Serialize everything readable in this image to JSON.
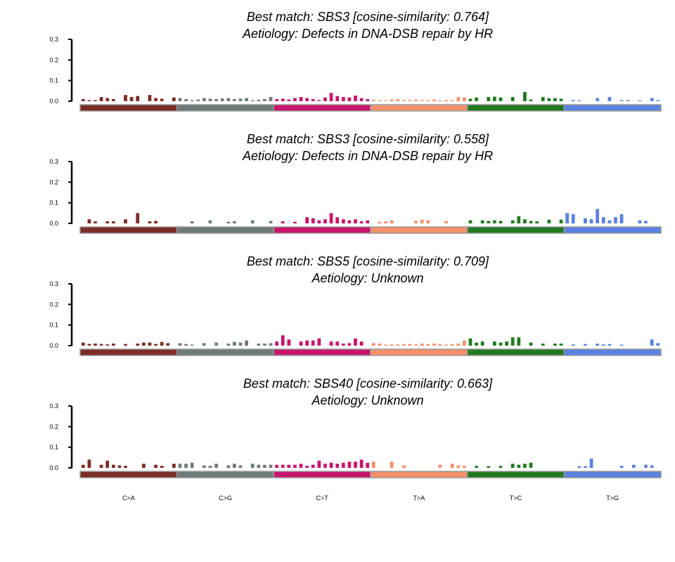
{
  "chart_data": [
    {
      "type": "bar",
      "title": "Best match: SBS3 [cosine-similarity: 0.764]",
      "subtitle": "Aetiology: Defects in DNA-DSB repair by HR",
      "ylim": [
        0,
        0.3
      ],
      "yticks": [
        "0.0",
        "0.1",
        "0.2",
        "0.3"
      ],
      "values": [
        0.01,
        0.005,
        0.005,
        0.02,
        0.015,
        0.01,
        0,
        0.03,
        0.02,
        0.025,
        0,
        0.03,
        0.015,
        0.012,
        0,
        0.018,
        0.015,
        0.01,
        0.005,
        0.008,
        0.015,
        0.012,
        0.01,
        0.013,
        0.015,
        0.01,
        0.013,
        0.015,
        0.005,
        0.007,
        0.01,
        0.02,
        0.01,
        0.012,
        0.008,
        0.015,
        0.02,
        0.015,
        0.01,
        0.005,
        0.018,
        0.04,
        0.025,
        0.02,
        0.018,
        0.027,
        0.015,
        0.01,
        0.006,
        0.005,
        0.004,
        0.008,
        0.01,
        0.006,
        0.005,
        0.008,
        0.005,
        0.005,
        0.008,
        0.004,
        0.006,
        0.005,
        0.02,
        0.018,
        0.012,
        0.018,
        0,
        0.02,
        0.022,
        0.018,
        0,
        0.02,
        0,
        0.045,
        0.008,
        0,
        0.02,
        0.015,
        0.015,
        0.012,
        0,
        0.005,
        0.004,
        0,
        0,
        0.015,
        0,
        0.02,
        0,
        0.005,
        0.005,
        0,
        0.004,
        0,
        0.015,
        0.005
      ]
    },
    {
      "type": "bar",
      "title": "Best match: SBS3 [cosine-similarity: 0.558]",
      "subtitle": "Aetiology: Defects in DNA-DSB repair by HR",
      "ylim": [
        0,
        0.3
      ],
      "yticks": [
        "0.0",
        "0.1",
        "0.2",
        "0.3"
      ],
      "values": [
        0,
        0.02,
        0.01,
        0,
        0.01,
        0.01,
        0,
        0.02,
        0,
        0.05,
        0,
        0.01,
        0.012,
        0,
        0,
        0,
        0,
        0,
        0.01,
        0,
        0,
        0.015,
        0,
        0,
        0.008,
        0.01,
        0,
        0,
        0.015,
        0,
        0,
        0.012,
        0,
        0.01,
        0,
        0.008,
        0,
        0.03,
        0.025,
        0.015,
        0.02,
        0.05,
        0.03,
        0.02,
        0.015,
        0.02,
        0.01,
        0.015,
        0,
        0.008,
        0.01,
        0.015,
        0,
        0,
        0,
        0.012,
        0.018,
        0.015,
        0,
        0,
        0.012,
        0,
        0,
        0,
        0.015,
        0,
        0.015,
        0.012,
        0.015,
        0.012,
        0,
        0.015,
        0.035,
        0.02,
        0.012,
        0.01,
        0,
        0.018,
        0,
        0.018,
        0.05,
        0.045,
        0,
        0.025,
        0.02,
        0.07,
        0.03,
        0.015,
        0.03,
        0.045,
        0,
        0,
        0.015,
        0.012,
        0,
        0
      ]
    },
    {
      "type": "bar",
      "title": "Best match: SBS5 [cosine-similarity: 0.709]",
      "subtitle": "Aetiology: Unknown",
      "ylim": [
        0,
        0.3
      ],
      "yticks": [
        "0.0",
        "0.1",
        "0.2",
        "0.3"
      ],
      "values": [
        0.015,
        0.008,
        0.01,
        0.008,
        0.006,
        0.01,
        0,
        0.008,
        0,
        0.01,
        0.015,
        0.015,
        0.008,
        0.018,
        0.012,
        0,
        0.012,
        0.008,
        0.005,
        0,
        0.012,
        0,
        0.015,
        0,
        0.01,
        0.018,
        0.015,
        0.025,
        0,
        0.01,
        0.01,
        0.012,
        0.02,
        0.05,
        0.03,
        0,
        0.02,
        0.025,
        0.025,
        0.035,
        0,
        0.02,
        0.02,
        0.01,
        0.012,
        0.035,
        0.02,
        0,
        0.012,
        0.01,
        0.005,
        0.006,
        0.006,
        0.008,
        0.008,
        0.006,
        0.01,
        0.008,
        0.01,
        0.008,
        0.005,
        0.008,
        0.01,
        0.025,
        0.035,
        0.015,
        0.02,
        0,
        0.02,
        0.015,
        0.02,
        0.04,
        0.04,
        0,
        0.015,
        0,
        0.01,
        0,
        0.01,
        0.01,
        0,
        0.006,
        0,
        0.008,
        0,
        0.01,
        0.006,
        0.008,
        0,
        0.005,
        0,
        0,
        0,
        0,
        0.03,
        0.012
      ]
    },
    {
      "type": "bar",
      "title": "Best match: SBS40 [cosine-similarity: 0.663]",
      "subtitle": "Aetiology: Unknown",
      "ylim": [
        0,
        0.3
      ],
      "yticks": [
        "0.0",
        "0.1",
        "0.2",
        "0.3"
      ],
      "values": [
        0.015,
        0.04,
        0,
        0.015,
        0.035,
        0.015,
        0.012,
        0.01,
        0,
        0,
        0.02,
        0,
        0.015,
        0.01,
        0,
        0.02,
        0.02,
        0.02,
        0.025,
        0,
        0.012,
        0.01,
        0.02,
        0,
        0.012,
        0.02,
        0.012,
        0,
        0.02,
        0.015,
        0.015,
        0.015,
        0.015,
        0.015,
        0.015,
        0.015,
        0.02,
        0.01,
        0.015,
        0.035,
        0.02,
        0.025,
        0.02,
        0.025,
        0.03,
        0.03,
        0.04,
        0.025,
        0.03,
        0,
        0,
        0.03,
        0,
        0.012,
        0,
        0,
        0,
        0,
        0,
        0.015,
        0,
        0.02,
        0.012,
        0.01,
        0,
        0.01,
        0,
        0.008,
        0,
        0.01,
        0,
        0.02,
        0.015,
        0.02,
        0.025,
        0,
        0,
        0,
        0,
        0,
        0,
        0,
        0.008,
        0.008,
        0.045,
        0,
        0,
        0,
        0,
        0.01,
        0,
        0.015,
        0,
        0.015,
        0.012,
        0
      ]
    }
  ],
  "categories": [
    {
      "label": "C>A",
      "color": "#7b2d26"
    },
    {
      "label": "C>G",
      "color": "#6e7a78"
    },
    {
      "label": "C>T",
      "color": "#c8156b"
    },
    {
      "label": "T>A",
      "color": "#f5906a"
    },
    {
      "label": "T>C",
      "color": "#207a1e"
    },
    {
      "label": "T>G",
      "color": "#5b82e0"
    }
  ]
}
